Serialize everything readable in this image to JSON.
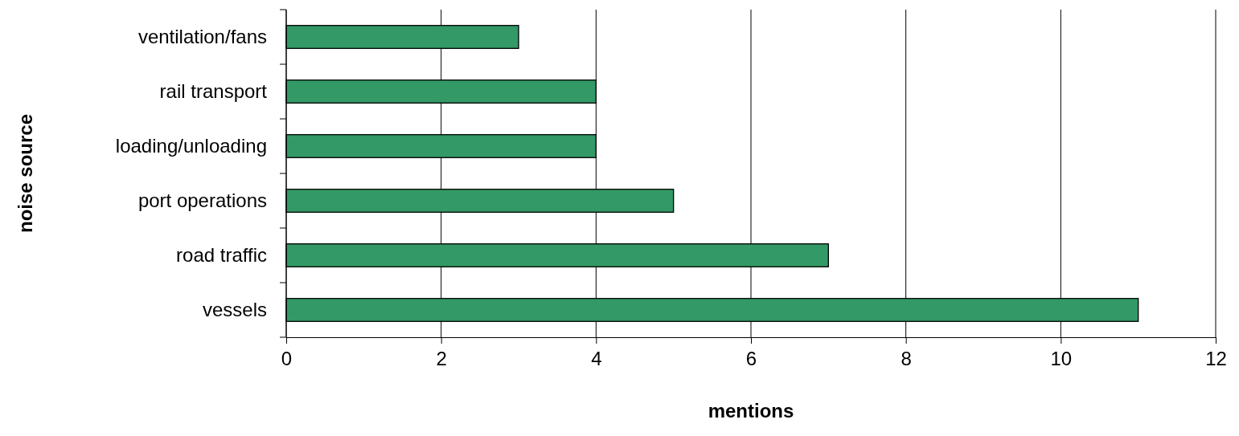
{
  "chart_data": {
    "type": "bar",
    "orientation": "horizontal",
    "xlabel": "mentions",
    "ylabel": "noise source",
    "categories": [
      "ventilation/fans",
      "rail transport",
      "loading/unloading",
      "port operations",
      "road traffic",
      "vessels"
    ],
    "values": [
      3,
      4,
      4,
      5,
      7,
      11
    ],
    "color": "#339966",
    "xlim": [
      0,
      12
    ],
    "xticks": [
      0,
      2,
      4,
      6,
      8,
      10,
      12
    ],
    "grid": "x"
  }
}
